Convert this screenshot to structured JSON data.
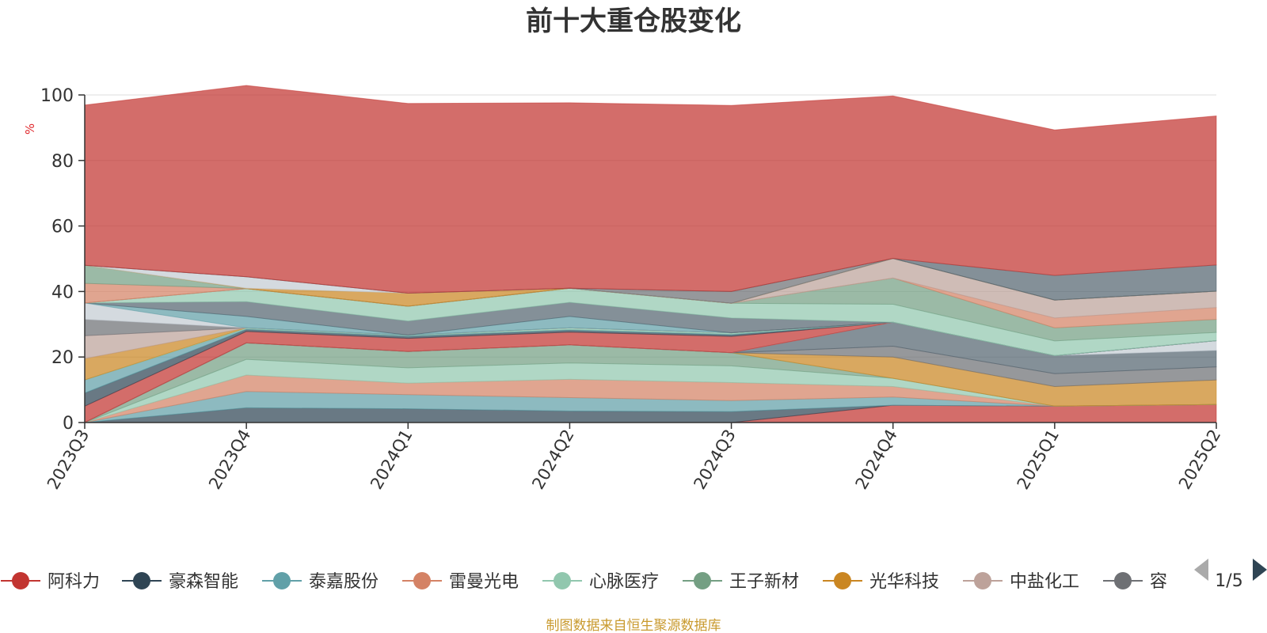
{
  "chart_data": {
    "type": "area",
    "stacked": true,
    "title": "前十大重仓股变化",
    "ylabel": "%",
    "ylim": [
      0,
      100
    ],
    "yticks": [
      0,
      20,
      40,
      60,
      80,
      100
    ],
    "grid": true,
    "legend_position": "bottom",
    "categories": [
      "2023Q3",
      "2023Q4",
      "2024Q1",
      "2024Q2",
      "2024Q3",
      "2024Q4",
      "2025Q1",
      "2025Q2"
    ],
    "series": [
      {
        "name": "阿科力",
        "color": "#c23531",
        "values": [
          0,
          0,
          0,
          0,
          0,
          5.3,
          5,
          5.5
        ]
      },
      {
        "name": "豪森智能",
        "color": "#2f4554",
        "values": [
          0,
          4.5,
          4.2,
          3.5,
          3.3,
          0,
          0,
          0
        ]
      },
      {
        "name": "泰嘉股份",
        "color": "#61a0a8",
        "values": [
          0,
          5,
          4.3,
          4.1,
          3.4,
          2.5,
          0,
          0
        ]
      },
      {
        "name": "雷曼光电",
        "color": "#d48265",
        "values": [
          0,
          5,
          3.5,
          5.6,
          5.5,
          3.2,
          0,
          0
        ]
      },
      {
        "name": "心脉医疗",
        "color": "#91c7ae",
        "values": [
          0,
          4.8,
          4.7,
          5,
          5.1,
          2.5,
          0,
          0
        ]
      },
      {
        "name": "王子新材",
        "color": "#749f83",
        "values": [
          0,
          5,
          5,
          5.5,
          4,
          0,
          0,
          0
        ]
      },
      {
        "name": "光华科技",
        "color": "#ca8622",
        "values": [
          0,
          0,
          0,
          0,
          0,
          6.5,
          6,
          7.5
        ]
      },
      {
        "name": "中盐化工",
        "color": "#bda29a",
        "values": [
          0,
          0,
          0,
          0,
          0,
          0,
          0,
          0
        ]
      },
      {
        "name": "容知日新",
        "color": "#6e7074",
        "values": [
          0,
          0,
          0,
          0,
          0,
          3.3,
          3.9,
          4
        ]
      },
      {
        "name": "",
        "color": "#546570",
        "values": [
          0,
          0,
          0,
          0,
          0,
          7.3,
          5.5,
          5
        ]
      },
      {
        "name": "",
        "color": "#c4ccd3",
        "values": [
          0,
          0,
          0,
          0,
          0,
          0,
          0,
          3
        ]
      },
      {
        "name": "",
        "color": "#c23531",
        "values": [
          5,
          3.5,
          4,
          3.9,
          5,
          0,
          0,
          0
        ]
      },
      {
        "name": "",
        "color": "#2f4554",
        "values": [
          4,
          0.6,
          0.6,
          0.6,
          0.5,
          0,
          0,
          0
        ]
      },
      {
        "name": "",
        "color": "#61a0a8",
        "values": [
          4,
          0.2,
          0.2,
          0.2,
          0.2,
          0,
          0,
          0
        ]
      },
      {
        "name": "",
        "color": "#91c7ae",
        "values": [
          0,
          0.3,
          0.2,
          0.5,
          0.4,
          0,
          0,
          0
        ]
      },
      {
        "name": "",
        "color": "#ca8622",
        "values": [
          6.5,
          0,
          0,
          0,
          0,
          0,
          0,
          0
        ]
      },
      {
        "name": "",
        "color": "#bda29a",
        "values": [
          7,
          0,
          0,
          0,
          0,
          0,
          0,
          0
        ]
      },
      {
        "name": "",
        "color": "#6e7074",
        "values": [
          5,
          0,
          0,
          0,
          0,
          0,
          0,
          0
        ]
      },
      {
        "name": "",
        "color": "#c4ccd3",
        "values": [
          5,
          0,
          0,
          0,
          0,
          0,
          0,
          0
        ]
      },
      {
        "name": "",
        "color": "#61a0a8",
        "values": [
          0,
          3.5,
          0,
          3.5,
          0,
          0,
          0,
          0
        ]
      },
      {
        "name": "",
        "color": "#546570",
        "values": [
          0,
          4.5,
          4.3,
          4.3,
          4.5,
          0,
          0,
          0
        ]
      },
      {
        "name": "",
        "color": "#91c7ae",
        "values": [
          0,
          4,
          4.5,
          4.3,
          4.5,
          5.5,
          4.5,
          2.5
        ]
      },
      {
        "name": "",
        "color": "#749f83",
        "values": [
          0,
          0,
          0,
          0,
          0,
          8,
          4,
          4
        ]
      },
      {
        "name": "",
        "color": "#d48265",
        "values": [
          0,
          0,
          0,
          0,
          0,
          0,
          3,
          3.6
        ]
      },
      {
        "name": "",
        "color": "#bda29a",
        "values": [
          0,
          0,
          0,
          0,
          0,
          6,
          5.5,
          5
        ]
      },
      {
        "name": "",
        "color": "#d48265",
        "values": [
          6,
          0,
          0,
          0,
          0,
          0,
          0,
          0
        ]
      },
      {
        "name": "",
        "color": "#749f83",
        "values": [
          5.5,
          0,
          0,
          0,
          0,
          0,
          0,
          0
        ]
      },
      {
        "name": "",
        "color": "#ca8622",
        "values": [
          0,
          0.1,
          4,
          0,
          0,
          0,
          0,
          0
        ]
      },
      {
        "name": "",
        "color": "#c4ccd3",
        "values": [
          0,
          3.5,
          0,
          0,
          0,
          0,
          0,
          0
        ]
      },
      {
        "name": "",
        "color": "#6e7074",
        "values": [
          0,
          0,
          0,
          0,
          3.6,
          0,
          0,
          0
        ]
      },
      {
        "name": "",
        "color": "#546570",
        "values": [
          0,
          0,
          0,
          0,
          0,
          0,
          7.5,
          8
        ]
      },
      {
        "name": "",
        "color": "#c23531",
        "values": [
          48.9,
          58.4,
          57.9,
          56.6,
          56.8,
          49.6,
          44.4,
          45.5
        ]
      }
    ]
  },
  "legend": {
    "items": [
      "阿科力",
      "豪森智能",
      "泰嘉股份",
      "雷曼光电",
      "心脉医疗",
      "王子新材",
      "光华科技",
      "中盐化工",
      "容"
    ],
    "pager": "1/5"
  },
  "source_note": "制图数据来自恒生聚源数据库"
}
